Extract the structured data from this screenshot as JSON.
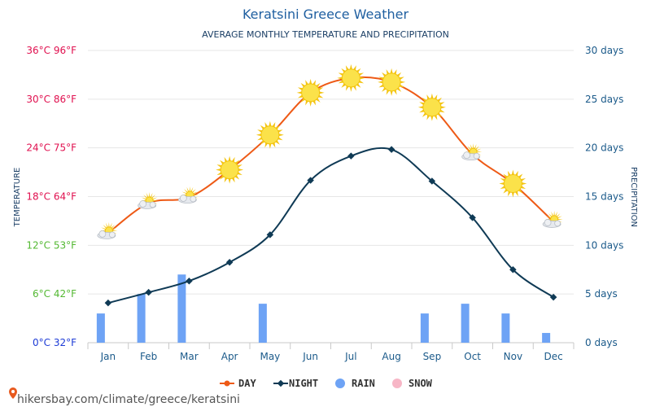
{
  "page": {
    "title": "Keratsini Greece Weather",
    "subtitle": "AVERAGE MONTHLY TEMPERATURE AND PRECIPITATION",
    "watermark": "hikersbay.com/climate/greece/keratsini"
  },
  "chart_data": {
    "type": "line",
    "categories": [
      "Jan",
      "Feb",
      "Mar",
      "Apr",
      "May",
      "Jun",
      "Jul",
      "Aug",
      "Sep",
      "Oct",
      "Nov",
      "Dec"
    ],
    "series": [
      {
        "name": "DAY",
        "type": "line",
        "color": "#ee5a16",
        "values": [
          13.5,
          17.2,
          17.9,
          21.3,
          25.6,
          30.8,
          32.6,
          32.1,
          29.0,
          23.2,
          19.6,
          14.9
        ]
      },
      {
        "name": "NIGHT",
        "type": "line",
        "color": "#0f3a55",
        "values": [
          4.9,
          6.2,
          7.6,
          9.9,
          13.3,
          20.0,
          23.0,
          23.8,
          19.9,
          15.4,
          9.0,
          5.6
        ]
      },
      {
        "name": "RAIN",
        "type": "bar",
        "color": "#6ea3f5",
        "values": [
          3,
          5,
          7,
          0,
          4,
          0,
          0,
          0,
          3,
          4,
          3,
          1
        ]
      },
      {
        "name": "SNOW",
        "type": "bar",
        "color": "#f7b6c6",
        "values": [
          0,
          0,
          0,
          0,
          0,
          0,
          0,
          0,
          0,
          0,
          0,
          0
        ]
      }
    ],
    "weather_icons": [
      "partly-cloudy",
      "partly-cloudy",
      "partly-cloudy",
      "sunny",
      "sunny",
      "sunny",
      "sunny",
      "sunny",
      "sunny",
      "partly-cloudy",
      "sunny",
      "partly-cloudy"
    ],
    "y_left": {
      "label": "TEMPERATURE",
      "range": [
        0,
        36
      ],
      "ticks": [
        {
          "text": "36°C 96°F",
          "value": 36,
          "color": "#e0104f"
        },
        {
          "text": "30°C 86°F",
          "value": 30,
          "color": "#e0104f"
        },
        {
          "text": "24°C 75°F",
          "value": 24,
          "color": "#e0104f"
        },
        {
          "text": "18°C 64°F",
          "value": 18,
          "color": "#e0104f"
        },
        {
          "text": "12°C 53°F",
          "value": 12,
          "color": "#53b832"
        },
        {
          "text": "6°C 42°F",
          "value": 6,
          "color": "#53b832"
        },
        {
          "text": "0°C 32°F",
          "value": 0,
          "color": "#1d3bd6"
        }
      ]
    },
    "y_right": {
      "label": "PRECIPITATION",
      "range": [
        0,
        30
      ],
      "ticks": [
        {
          "text": "30 days",
          "value": 30
        },
        {
          "text": "25 days",
          "value": 25
        },
        {
          "text": "20 days",
          "value": 20
        },
        {
          "text": "15 days",
          "value": 15
        },
        {
          "text": "10 days",
          "value": 10
        },
        {
          "text": "5 days",
          "value": 5
        },
        {
          "text": "0 days",
          "value": 0
        }
      ]
    },
    "grid": true,
    "legend_position": "bottom-center"
  }
}
